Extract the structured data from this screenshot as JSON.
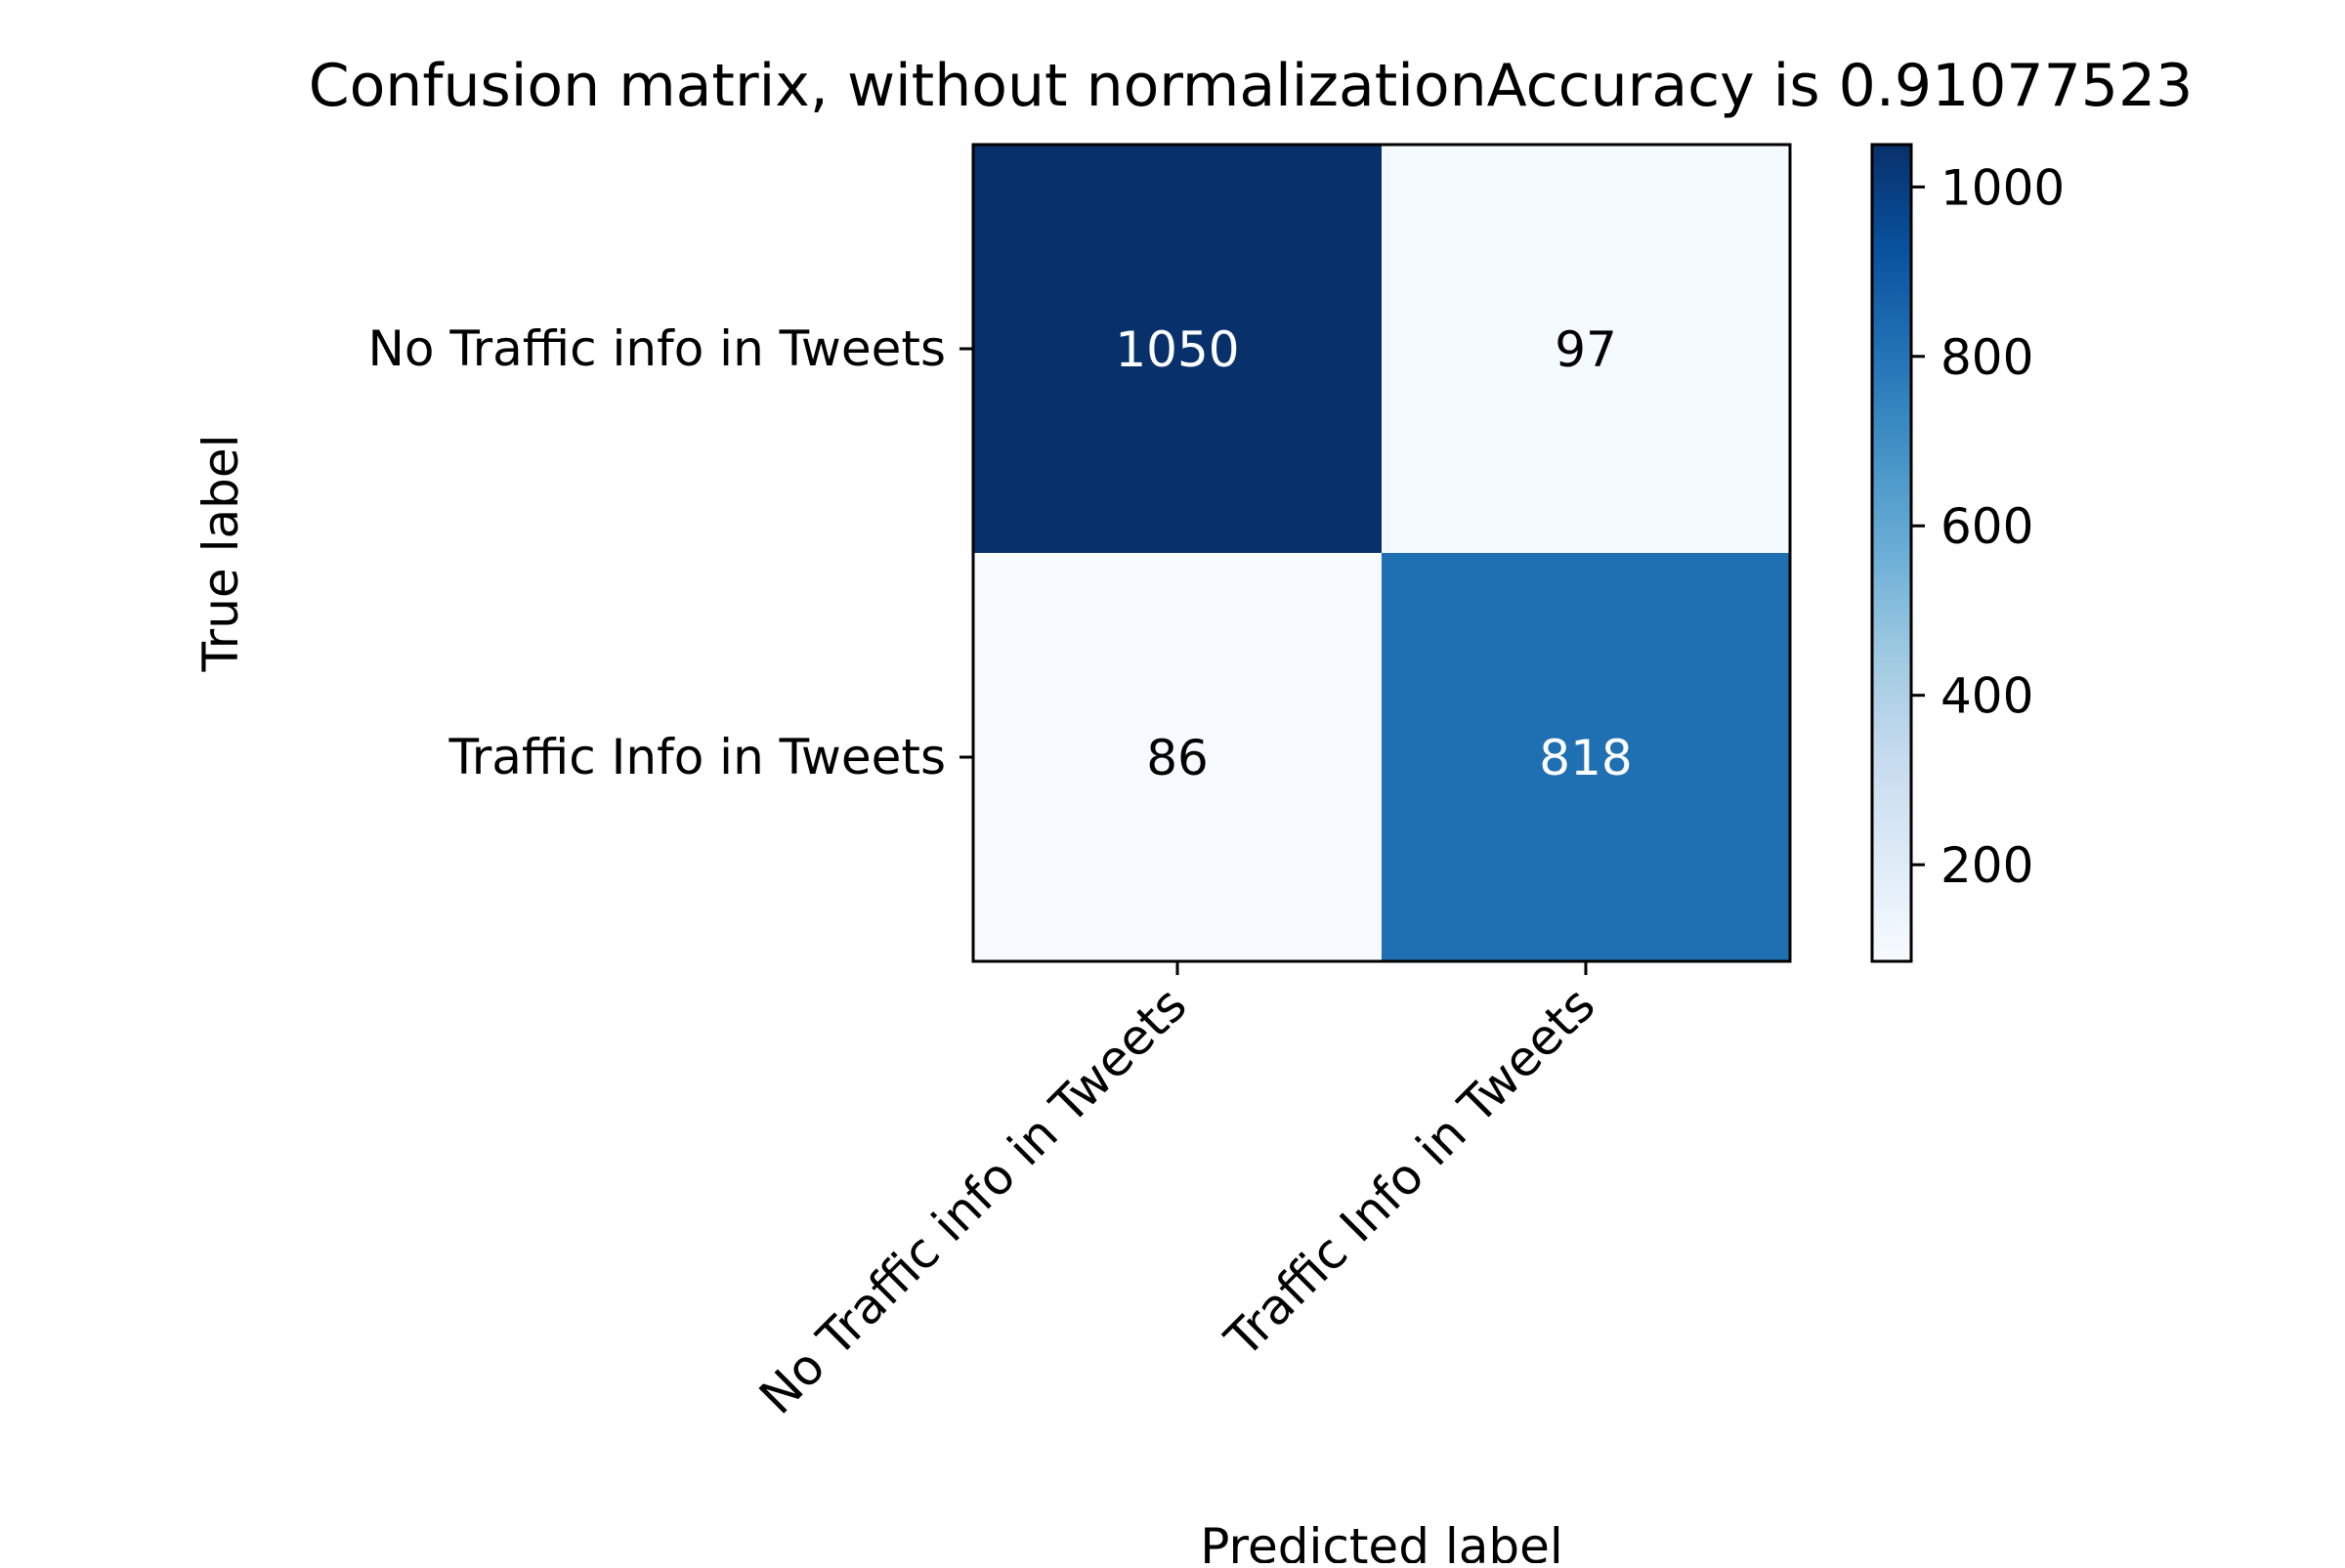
{
  "chart_data": {
    "type": "heatmap",
    "title": "Confusion matrix, without normalizationAccuracy is 0.91077523",
    "xlabel": "Predicted label",
    "ylabel": "True label",
    "x_categories": [
      "No Traffic info in Tweets",
      "Traffic Info in Tweets"
    ],
    "y_categories": [
      "No Traffic info in Tweets",
      "Traffic Info in Tweets"
    ],
    "matrix": [
      [
        1050,
        97
      ],
      [
        86,
        818
      ]
    ],
    "cell_labels": [
      [
        "1050",
        "97"
      ],
      [
        "86",
        "818"
      ]
    ],
    "colormap": "Blues",
    "colorbar": {
      "range": [
        86,
        1050
      ],
      "ticks": [
        200,
        400,
        600,
        800,
        1000
      ],
      "tick_labels": [
        "200",
        "400",
        "600",
        "800",
        "1000"
      ]
    },
    "grid": false
  }
}
